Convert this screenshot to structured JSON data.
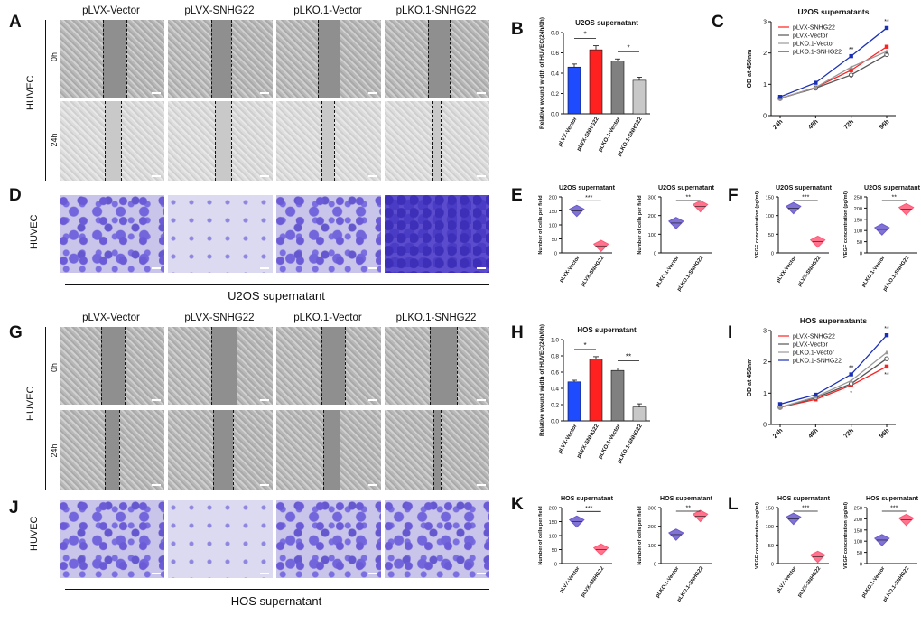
{
  "columns": [
    "pLVX-Vector",
    "pLVX-SNHG22",
    "pLKO.1-Vector",
    "pLKO.1-SNHG22"
  ],
  "letters": {
    "A": "A",
    "B": "B",
    "C": "C",
    "D": "D",
    "E": "E",
    "F": "F",
    "G": "G",
    "H": "H",
    "I": "I",
    "J": "J",
    "K": "K",
    "L": "L"
  },
  "cell_label": "HUVEC",
  "time_0": "0h",
  "time_24": "24h",
  "u2os_supernatant": "U2OS supernatant",
  "hos_supernatant": "HOS supernatant",
  "colors": {
    "blue": "#1f4bff",
    "red": "#ff2020",
    "gray": "#808080",
    "lightgray": "#c8c8c8",
    "violet": "#6a5acd",
    "pink": "#ff5a78"
  },
  "chart_data": [
    {
      "id": "B",
      "type": "bar",
      "title": "U2OS supernatant",
      "ylabel": "Relative wound width of HUVEC(24h/0h)",
      "categories": [
        "pLVX-Vector",
        "pLVX-SNHG22",
        "pLKO.1-Vector",
        "pLKO.1-SNHG22"
      ],
      "values": [
        0.46,
        0.63,
        0.52,
        0.33
      ],
      "errors": [
        0.03,
        0.04,
        0.02,
        0.03
      ],
      "ylim": [
        0,
        0.8
      ],
      "yticks": [
        "0.0",
        "0.2",
        "0.4",
        "0.6",
        "0.8"
      ],
      "sig": [
        "*",
        "*"
      ]
    },
    {
      "id": "C",
      "type": "line",
      "title": "U2OS supernatants",
      "ylabel": "OD at 450nm",
      "x": [
        "24h",
        "48h",
        "72h",
        "96h"
      ],
      "ylim": [
        0,
        3
      ],
      "yticks": [
        "0",
        "1",
        "2",
        "3"
      ],
      "series": [
        {
          "name": "pLVX-SNHG22",
          "values": [
            0.55,
            0.9,
            1.45,
            2.2
          ]
        },
        {
          "name": "pLVX-Vector",
          "values": [
            0.55,
            0.88,
            1.3,
            1.95
          ]
        },
        {
          "name": "pLKO.1-Vector",
          "values": [
            0.55,
            0.9,
            1.55,
            2.05
          ]
        },
        {
          "name": "pLKO.1-SNHG22",
          "values": [
            0.6,
            1.05,
            1.9,
            2.8
          ]
        }
      ],
      "annotations": [
        "**",
        "*",
        "**",
        "*"
      ]
    },
    {
      "id": "E1",
      "type": "violin",
      "title": "U2OS supernatant",
      "ylabel": "Number of cells per field",
      "categories": [
        "pLVX-Vector",
        "pLVX-SNHG22"
      ],
      "values": [
        150,
        25
      ],
      "ylim": [
        0,
        200
      ],
      "yticks": [
        "0",
        "50",
        "100",
        "150",
        "200"
      ],
      "sig": "***"
    },
    {
      "id": "E2",
      "type": "violin",
      "title": "U2OS supernatant",
      "ylabel": "Number of cells per field",
      "categories": [
        "pLKO.1-Vector",
        "pLKO.1-SNHG22"
      ],
      "values": [
        160,
        250
      ],
      "ylim": [
        0,
        300
      ],
      "yticks": [
        "0",
        "100",
        "200",
        "300"
      ],
      "sig": "**"
    },
    {
      "id": "F1",
      "type": "violin",
      "title": "U2OS supernatant",
      "ylabel": "VEGF concentration (pg/ml)",
      "categories": [
        "pLVX-Vector",
        "pLVX-SNHG22"
      ],
      "values": [
        120,
        30
      ],
      "ylim": [
        0,
        150
      ],
      "yticks": [
        "0",
        "50",
        "100",
        "150"
      ],
      "sig": "***"
    },
    {
      "id": "F2",
      "type": "violin",
      "title": "U2OS supernatant",
      "ylabel": "VEGF concentration (pg/ml)",
      "categories": [
        "pLKO.1-Vector",
        "pLKO.1-SNHG22"
      ],
      "values": [
        105,
        195
      ],
      "ylim": [
        0,
        250
      ],
      "yticks": [
        "0",
        "50",
        "100",
        "150",
        "200",
        "250"
      ],
      "sig": "**"
    },
    {
      "id": "H",
      "type": "bar",
      "title": "HOS supernatant",
      "ylabel": "Relative wound width of HUVEC(24h/0h)",
      "categories": [
        "pLVX-Vector",
        "pLVX-SNHG22",
        "pLKO.1-Vector",
        "pLKO.1-SNHG22"
      ],
      "values": [
        0.48,
        0.76,
        0.62,
        0.17
      ],
      "errors": [
        0.02,
        0.03,
        0.03,
        0.04
      ],
      "ylim": [
        0,
        1.0
      ],
      "yticks": [
        "0.0",
        "0.2",
        "0.4",
        "0.6",
        "0.8",
        "1.0"
      ],
      "sig": [
        "*",
        "**"
      ]
    },
    {
      "id": "I",
      "type": "line",
      "title": "HOS supernatants",
      "ylabel": "OD at 450nm",
      "x": [
        "24h",
        "48h",
        "72h",
        "96h"
      ],
      "ylim": [
        0,
        3
      ],
      "yticks": [
        "0",
        "1",
        "2",
        "3"
      ],
      "series": [
        {
          "name": "pLVX-SNHG22",
          "values": [
            0.55,
            0.8,
            1.25,
            1.85
          ]
        },
        {
          "name": "pLVX-Vector",
          "values": [
            0.55,
            0.85,
            1.3,
            2.1
          ]
        },
        {
          "name": "pLKO.1-Vector",
          "values": [
            0.55,
            0.88,
            1.4,
            2.3
          ]
        },
        {
          "name": "pLKO.1-SNHG22",
          "values": [
            0.65,
            0.95,
            1.6,
            2.85
          ]
        }
      ],
      "annotations": [
        "**",
        "*",
        "**",
        "**"
      ]
    },
    {
      "id": "K1",
      "type": "violin",
      "title": "HOS supernatant",
      "ylabel": "Number of cells per field",
      "categories": [
        "pLVX-Vector",
        "pLVX-SNHG22"
      ],
      "values": [
        150,
        50
      ],
      "ylim": [
        0,
        200
      ],
      "yticks": [
        "0",
        "50",
        "100",
        "150",
        "200"
      ],
      "sig": "***"
    },
    {
      "id": "K2",
      "type": "violin",
      "title": "HOS supernatant",
      "ylabel": "Number of cells per field",
      "categories": [
        "pLKO.1-Vector",
        "pLKO.1-SNHG22"
      ],
      "values": [
        155,
        255
      ],
      "ylim": [
        0,
        300
      ],
      "yticks": [
        "0",
        "100",
        "200",
        "300"
      ],
      "sig": "**"
    },
    {
      "id": "L1",
      "type": "violin",
      "title": "HOS supernatant",
      "ylabel": "VEGF concentration (pg/ml)",
      "categories": [
        "pLVX-Vector",
        "pLVX-SNHG22"
      ],
      "values": [
        120,
        18
      ],
      "ylim": [
        0,
        150
      ],
      "yticks": [
        "0",
        "50",
        "100",
        "150"
      ],
      "sig": "***"
    },
    {
      "id": "L2",
      "type": "violin",
      "title": "HOS supernatant",
      "ylabel": "VEGF concentration (pg/ml)",
      "categories": [
        "pLKO.1-Vector",
        "pLKO.1-SNHG22"
      ],
      "values": [
        105,
        195
      ],
      "ylim": [
        0,
        250
      ],
      "yticks": [
        "0",
        "50",
        "100",
        "150",
        "200",
        "250"
      ],
      "sig": "***"
    }
  ]
}
